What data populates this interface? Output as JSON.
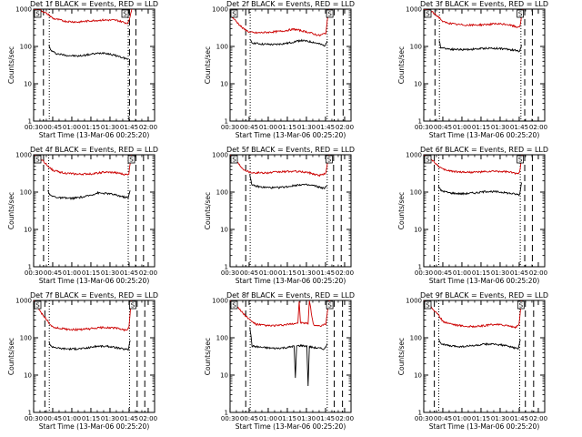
{
  "figure": {
    "xlabel": "Start Time (13-Mar-06 00:25:20)",
    "ylabel": "Counts/sec",
    "x_ticks": [
      "00:30",
      "00:45",
      "01:00",
      "01:15",
      "01:30",
      "01:45",
      "02:00"
    ],
    "y_ticks": [
      "1",
      "10",
      "100",
      "1000"
    ],
    "colors": {
      "events": "#000000",
      "lld": "#cc0000",
      "frame": "#000000"
    },
    "markers": [
      "S",
      "S"
    ]
  },
  "chart_data": [
    {
      "type": "line",
      "id": "det1",
      "title": "Det 1f BLACK = Events, RED = LLD",
      "x_unit": "minutes after 00:25:20",
      "xlim": [
        4.7,
        99.7
      ],
      "ylim": [
        1,
        1000
      ],
      "y_scale": "log",
      "dashed_x": [
        12.4,
        80.0,
        85.0
      ],
      "dotted_x": [
        17.0,
        79.0
      ],
      "series": [
        {
          "name": "Events",
          "color": "#000000",
          "x": [
            16.5,
            18,
            22,
            30,
            40,
            50,
            60,
            70,
            75,
            79
          ],
          "values": [
            110,
            80,
            65,
            58,
            55,
            62,
            68,
            56,
            50,
            45
          ]
        },
        {
          "name": "LLD",
          "color": "#cc0000",
          "x": [
            5,
            10,
            16.5,
            20,
            30,
            40,
            50,
            60,
            70,
            78,
            79.5,
            82
          ],
          "values": [
            1000,
            950,
            700,
            560,
            470,
            450,
            490,
            510,
            500,
            420,
            460,
            1100
          ]
        }
      ]
    },
    {
      "type": "line",
      "id": "det2",
      "title": "Det 2f BLACK = Events, RED = LLD",
      "x_unit": "minutes after 00:25:20",
      "xlim": [
        4.7,
        99.7
      ],
      "ylim": [
        1,
        1000
      ],
      "y_scale": "log",
      "dashed_x": [
        17.0,
        86.5,
        93.5
      ],
      "dotted_x": [
        20.5,
        81.0
      ],
      "series": [
        {
          "name": "Events",
          "color": "#000000",
          "x": [
            20.2,
            22,
            30,
            40,
            50,
            60,
            70,
            79,
            81
          ],
          "values": [
            150,
            125,
            115,
            112,
            122,
            145,
            130,
            105,
            140
          ]
        },
        {
          "name": "LLD",
          "color": "#cc0000",
          "x": [
            5,
            10,
            15,
            20.2,
            25,
            35,
            45,
            55,
            65,
            75,
            80,
            82,
            84
          ],
          "values": [
            700,
            450,
            300,
            240,
            230,
            240,
            255,
            290,
            245,
            195,
            230,
            900,
            1200
          ]
        }
      ]
    },
    {
      "type": "line",
      "id": "det3",
      "title": "Det 3f BLACK = Events, RED = LLD",
      "x_unit": "minutes after 00:25:20",
      "xlim": [
        4.7,
        99.7
      ],
      "ylim": [
        1,
        1000
      ],
      "y_scale": "log",
      "dashed_x": [
        13.5,
        84.0,
        90.0
      ],
      "dotted_x": [
        17.0,
        81.0
      ],
      "series": [
        {
          "name": "Events",
          "color": "#000000",
          "x": [
            16.8,
            18,
            25,
            35,
            45,
            55,
            65,
            75,
            80,
            81.5
          ],
          "values": [
            140,
            95,
            85,
            82,
            85,
            90,
            88,
            80,
            75,
            110
          ]
        },
        {
          "name": "LLD",
          "color": "#cc0000",
          "x": [
            5,
            10,
            16.8,
            20,
            30,
            40,
            50,
            60,
            70,
            78,
            80.5,
            82.5
          ],
          "values": [
            1000,
            900,
            600,
            450,
            390,
            370,
            380,
            400,
            390,
            330,
            360,
            1100
          ]
        }
      ]
    },
    {
      "type": "line",
      "id": "det4",
      "title": "Det 4f BLACK = Events, RED = LLD",
      "x_unit": "minutes after 00:25:20",
      "xlim": [
        4.7,
        99.7
      ],
      "ylim": [
        1,
        1000
      ],
      "y_scale": "log",
      "dashed_x": [
        12.5,
        85.0,
        91.0
      ],
      "dotted_x": [
        16.5,
        79.0
      ],
      "series": [
        {
          "name": "Events",
          "color": "#000000",
          "x": [
            16.0,
            18,
            25,
            35,
            45,
            55,
            65,
            75,
            79,
            80.5
          ],
          "values": [
            110,
            80,
            70,
            68,
            75,
            95,
            90,
            75,
            70,
            110
          ]
        },
        {
          "name": "LLD",
          "color": "#cc0000",
          "x": [
            5,
            10,
            16.0,
            20,
            30,
            40,
            50,
            60,
            70,
            77,
            79.5,
            81.5
          ],
          "values": [
            1000,
            800,
            500,
            380,
            320,
            300,
            310,
            340,
            330,
            290,
            310,
            1100
          ]
        }
      ]
    },
    {
      "type": "line",
      "id": "det5",
      "title": "Det 5f BLACK = Events, RED = LLD",
      "x_unit": "minutes after 00:25:20",
      "xlim": [
        4.7,
        99.7
      ],
      "ylim": [
        1,
        1000
      ],
      "y_scale": "log",
      "dashed_x": [
        17.0,
        86.0,
        92.0
      ],
      "dotted_x": [
        20.5,
        81.0
      ],
      "series": [
        {
          "name": "Events",
          "color": "#000000",
          "x": [
            20.2,
            22,
            30,
            40,
            50,
            60,
            70,
            79,
            81
          ],
          "values": [
            300,
            150,
            135,
            130,
            140,
            160,
            150,
            125,
            150
          ]
        },
        {
          "name": "LLD",
          "color": "#cc0000",
          "x": [
            5,
            10,
            15,
            20.2,
            25,
            35,
            45,
            55,
            65,
            75,
            80,
            82,
            84
          ],
          "values": [
            1000,
            650,
            420,
            340,
            330,
            330,
            350,
            360,
            340,
            280,
            320,
            900,
            1200
          ]
        }
      ]
    },
    {
      "type": "line",
      "id": "det6",
      "title": "Det 6f BLACK = Events, RED = LLD",
      "x_unit": "minutes after 00:25:20",
      "xlim": [
        4.7,
        99.7
      ],
      "ylim": [
        1,
        1000
      ],
      "y_scale": "log",
      "dashed_x": [
        13.0,
        84.0,
        90.0
      ],
      "dotted_x": [
        16.5,
        80.5
      ],
      "series": [
        {
          "name": "Events",
          "color": "#000000",
          "x": [
            16.2,
            18,
            25,
            35,
            45,
            55,
            65,
            75,
            80,
            81.5
          ],
          "values": [
            150,
            110,
            95,
            90,
            95,
            105,
            100,
            90,
            85,
            180
          ]
        },
        {
          "name": "LLD",
          "color": "#cc0000",
          "x": [
            5,
            10,
            16.2,
            20,
            30,
            40,
            50,
            60,
            70,
            78,
            80,
            82
          ],
          "values": [
            1000,
            800,
            500,
            400,
            350,
            340,
            345,
            360,
            350,
            310,
            340,
            1100
          ]
        }
      ]
    },
    {
      "type": "line",
      "id": "det7",
      "title": "Det 7f BLACK = Events, RED = LLD",
      "x_unit": "minutes after 00:25:20",
      "xlim": [
        4.7,
        99.7
      ],
      "ylim": [
        1,
        1000
      ],
      "y_scale": "log",
      "dashed_x": [
        13.5,
        86.0,
        92.0
      ],
      "dotted_x": [
        17.0,
        80.0
      ],
      "series": [
        {
          "name": "Events",
          "color": "#000000",
          "x": [
            16.8,
            18,
            25,
            35,
            45,
            55,
            65,
            75,
            79,
            80.5
          ],
          "values": [
            80,
            60,
            52,
            50,
            52,
            60,
            58,
            50,
            48,
            85
          ]
        },
        {
          "name": "LLD",
          "color": "#cc0000",
          "x": [
            5,
            10,
            16.8,
            20,
            30,
            40,
            50,
            60,
            70,
            77,
            79.5,
            81.5
          ],
          "values": [
            1000,
            500,
            250,
            190,
            170,
            165,
            175,
            190,
            180,
            160,
            180,
            1100
          ]
        }
      ]
    },
    {
      "type": "line",
      "id": "det8",
      "title": "Det 8f BLACK = Events, RED = LLD",
      "x_unit": "minutes after 00:25:20",
      "xlim": [
        4.7,
        99.7
      ],
      "ylim": [
        1,
        1000
      ],
      "y_scale": "log",
      "dashed_x": [
        17.0,
        86.5,
        93.0
      ],
      "dotted_x": [
        20.5,
        81.0
      ],
      "series": [
        {
          "name": "Events",
          "color": "#000000",
          "x": [
            20.2,
            22,
            30,
            40,
            50,
            55,
            56,
            57,
            60,
            65,
            66,
            67,
            70,
            79,
            81
          ],
          "values": [
            200,
            60,
            55,
            52,
            55,
            60,
            8,
            60,
            62,
            60,
            5,
            58,
            55,
            50,
            70
          ]
        },
        {
          "name": "LLD",
          "color": "#cc0000",
          "x": [
            5,
            10,
            15,
            20.2,
            25,
            35,
            45,
            55,
            58,
            59,
            60,
            66,
            67,
            70,
            75,
            80,
            82,
            84
          ],
          "values": [
            1000,
            700,
            450,
            300,
            230,
            210,
            215,
            240,
            250,
            1000,
            250,
            240,
            1000,
            230,
            200,
            230,
            900,
            1200
          ]
        }
      ]
    },
    {
      "type": "line",
      "id": "det9",
      "title": "Det 9f BLACK = Events, RED = LLD",
      "x_unit": "minutes after 00:25:20",
      "xlim": [
        4.7,
        99.7
      ],
      "ylim": [
        1,
        1000
      ],
      "y_scale": "log",
      "dashed_x": [
        13.0,
        84.5,
        91.0
      ],
      "dotted_x": [
        16.5,
        80.0
      ],
      "series": [
        {
          "name": "Events",
          "color": "#000000",
          "x": [
            16.2,
            18,
            25,
            35,
            45,
            55,
            65,
            75,
            79,
            80.5
          ],
          "values": [
            100,
            70,
            60,
            58,
            62,
            68,
            65,
            55,
            50,
            90
          ]
        },
        {
          "name": "LLD",
          "color": "#cc0000",
          "x": [
            5,
            10,
            16.2,
            20,
            30,
            40,
            50,
            60,
            70,
            77,
            79.5,
            81.5
          ],
          "values": [
            1000,
            700,
            400,
            270,
            220,
            200,
            205,
            230,
            215,
            190,
            220,
            1100
          ]
        }
      ]
    }
  ]
}
